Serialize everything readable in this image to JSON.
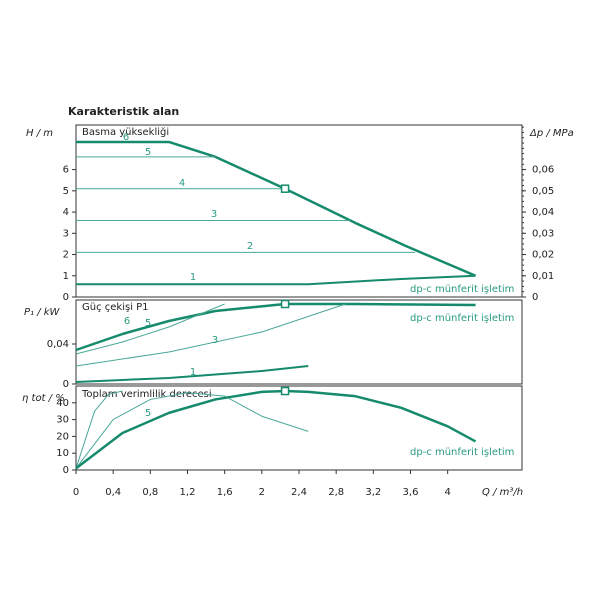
{
  "title": "Karakteristik alan",
  "chart_data": [
    {
      "type": "line",
      "ylabel": "H / m",
      "y2label": "Δp / MPa",
      "xlim": [
        0,
        4.8
      ],
      "ylim": [
        0,
        8.1
      ],
      "yticks": [
        0,
        1,
        2,
        3,
        4,
        5,
        6
      ],
      "y2lim": [
        0,
        0.081
      ],
      "y2ticks": [
        0,
        {
          "value": 0.01,
          "label": "0,01"
        },
        {
          "value": 0.02,
          "label": "0,02"
        },
        {
          "value": 0.03,
          "label": "0,03"
        },
        {
          "value": 0.04,
          "label": "0,04"
        },
        {
          "value": 0.05,
          "label": "0,05"
        },
        {
          "value": 0.06,
          "label": "0,06"
        }
      ],
      "annotations": [
        "Basma yüksekliği",
        "dp-c münferit işletim"
      ],
      "operating_point": {
        "x": 2.25,
        "y": 5.1
      },
      "series": [
        {
          "name": "6",
          "color": "#168a6c",
          "width": 2.5,
          "x": [
            0,
            1.0,
            1.5,
            2.25,
            3.0,
            3.55,
            4.3
          ],
          "values": [
            7.3,
            7.3,
            6.6,
            5.1,
            3.5,
            2.4,
            1.0
          ]
        },
        {
          "name": "5",
          "color": "#4aa898",
          "width": 1,
          "x": [
            0,
            1.5
          ],
          "values": [
            6.6,
            6.6
          ]
        },
        {
          "name": "4",
          "color": "#4aa898",
          "width": 1,
          "x": [
            0,
            2.25
          ],
          "values": [
            5.1,
            5.1
          ]
        },
        {
          "name": "3",
          "color": "#4aa898",
          "width": 1,
          "x": [
            0,
            2.95
          ],
          "values": [
            3.6,
            3.6
          ]
        },
        {
          "name": "2",
          "color": "#4aa898",
          "width": 1,
          "x": [
            0,
            3.65
          ],
          "values": [
            2.1,
            2.1
          ]
        },
        {
          "name": "1",
          "color": "#168a6c",
          "width": 2,
          "x": [
            0,
            2.5,
            3.5,
            4.3
          ],
          "values": [
            0.6,
            0.6,
            0.85,
            1.0
          ]
        }
      ]
    },
    {
      "type": "line",
      "ylabel": "P₁ / kW",
      "xlim": [
        0,
        4.8
      ],
      "ylim": [
        0,
        0.084
      ],
      "yticks": [
        0,
        {
          "value": 0.04,
          "label": "0,04"
        }
      ],
      "annotations": [
        "Güç çekişi P1",
        "dp-c münferit işletim"
      ],
      "operating_point": {
        "x": 2.25,
        "y": 0.08
      },
      "series": [
        {
          "name": "6",
          "color": "#168a6c",
          "width": 2.5,
          "x": [
            0,
            0.5,
            1.0,
            1.5,
            2.25,
            3.0,
            4.3
          ],
          "values": [
            0.034,
            0.05,
            0.063,
            0.073,
            0.08,
            0.08,
            0.079
          ]
        },
        {
          "name": "5",
          "color": "#4aa898",
          "width": 1,
          "x": [
            0,
            0.5,
            1.0,
            1.6
          ],
          "values": [
            0.03,
            0.042,
            0.057,
            0.08
          ]
        },
        {
          "name": "3",
          "color": "#4aa898",
          "width": 1,
          "x": [
            0,
            1.0,
            2.0,
            2.9
          ],
          "values": [
            0.018,
            0.032,
            0.052,
            0.08
          ]
        },
        {
          "name": "1",
          "color": "#168a6c",
          "width": 2,
          "x": [
            0,
            1.0,
            2.0,
            2.5
          ],
          "values": [
            0.002,
            0.006,
            0.013,
            0.018
          ]
        }
      ]
    },
    {
      "type": "line",
      "ylabel": "η tot / %",
      "xlabel": "Q / m³/h",
      "xlim": [
        0,
        4.8
      ],
      "ylim": [
        0,
        50
      ],
      "yticks": [
        0,
        10,
        20,
        30,
        40
      ],
      "xticks": [
        0,
        {
          "value": 0.4,
          "label": "0,4"
        },
        {
          "value": 0.8,
          "label": "0,8"
        },
        {
          "value": 1.2,
          "label": "1,2"
        },
        {
          "value": 1.6,
          "label": "1,6"
        },
        2,
        {
          "value": 2.4,
          "label": "2,4"
        },
        {
          "value": 2.8,
          "label": "2,8"
        },
        {
          "value": 3.2,
          "label": "3,2"
        },
        {
          "value": 3.6,
          "label": "3,6"
        },
        4
      ],
      "annotations": [
        "Toplam verimlilik derecesi",
        "dp-c münferit işletim"
      ],
      "operating_point": {
        "x": 2.25,
        "y": 47
      },
      "series": [
        {
          "name": "5",
          "color": "#4aa898",
          "width": 1,
          "x": [
            0,
            0.4,
            0.8,
            1.2,
            1.6,
            2.0,
            2.5
          ],
          "values": [
            1,
            30,
            42,
            46,
            44,
            32,
            23
          ]
        },
        {
          "color": "#4aa898",
          "width": 1,
          "x": [
            0,
            0.2,
            0.35,
            0.5
          ],
          "values": [
            1,
            35,
            45,
            47
          ]
        },
        {
          "color": "#168a6c",
          "width": 2.5,
          "x": [
            0,
            0.5,
            1.0,
            1.5,
            2.0,
            2.25,
            2.5,
            3.0,
            3.5,
            4.0,
            4.3
          ],
          "values": [
            1,
            22,
            34,
            42,
            46.5,
            47,
            46.5,
            44,
            37,
            26,
            17
          ]
        }
      ]
    }
  ]
}
